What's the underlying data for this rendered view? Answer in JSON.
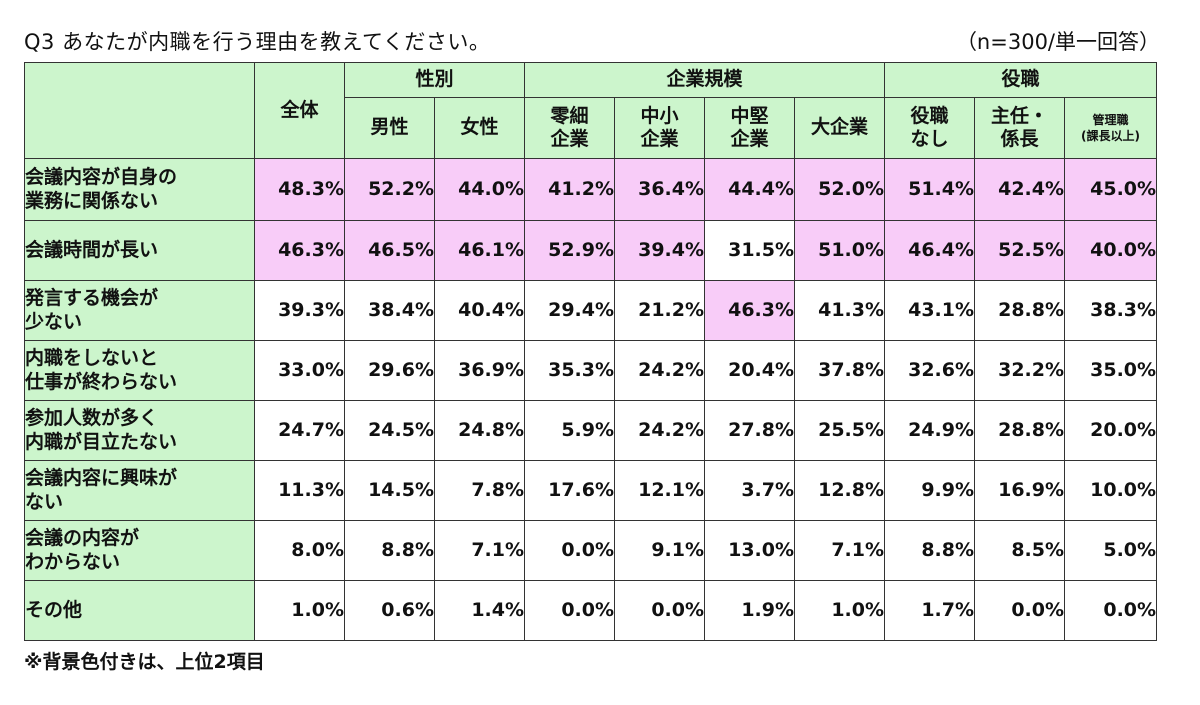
{
  "title": "Q3 あなたが内職を行う理由を教えてください。",
  "sample_note": "（n=300/単一回答）",
  "footnote": "※背景色付きは、上位2項目",
  "colors": {
    "header_bg": "#ccf5cc",
    "highlight_bg": "#f8ccf8"
  },
  "chart_data": {
    "type": "table",
    "title": "Q3 あなたが内職を行う理由を教えてください。",
    "total_label": "全体",
    "groups": [
      {
        "label": "性別",
        "columns": [
          "男性",
          "女性"
        ]
      },
      {
        "label": "企業規模",
        "columns": [
          "零細\n企業",
          "中小\n企業",
          "中堅\n企業",
          "大企業"
        ]
      },
      {
        "label": "役職",
        "columns": [
          "役職\nなし",
          "主任・\n係長",
          "管理職\n(課長以上)"
        ]
      }
    ],
    "rows": [
      {
        "label": "会議内容が自身の\n業務に関係ない",
        "values": [
          "48.3%",
          "52.2%",
          "44.0%",
          "41.2%",
          "36.4%",
          "44.4%",
          "52.0%",
          "51.4%",
          "42.4%",
          "45.0%"
        ],
        "highlight": [
          true,
          true,
          true,
          true,
          true,
          true,
          true,
          true,
          true,
          true
        ]
      },
      {
        "label": "会議時間が長い",
        "values": [
          "46.3%",
          "46.5%",
          "46.1%",
          "52.9%",
          "39.4%",
          "31.5%",
          "51.0%",
          "46.4%",
          "52.5%",
          "40.0%"
        ],
        "highlight": [
          true,
          true,
          true,
          true,
          true,
          false,
          true,
          true,
          true,
          true
        ]
      },
      {
        "label": "発言する機会が\n少ない",
        "values": [
          "39.3%",
          "38.4%",
          "40.4%",
          "29.4%",
          "21.2%",
          "46.3%",
          "41.3%",
          "43.1%",
          "28.8%",
          "38.3%"
        ],
        "highlight": [
          false,
          false,
          false,
          false,
          false,
          true,
          false,
          false,
          false,
          false
        ]
      },
      {
        "label": "内職をしないと\n仕事が終わらない",
        "values": [
          "33.0%",
          "29.6%",
          "36.9%",
          "35.3%",
          "24.2%",
          "20.4%",
          "37.8%",
          "32.6%",
          "32.2%",
          "35.0%"
        ],
        "highlight": [
          false,
          false,
          false,
          false,
          false,
          false,
          false,
          false,
          false,
          false
        ]
      },
      {
        "label": "参加人数が多く\n内職が目立たない",
        "values": [
          "24.7%",
          "24.5%",
          "24.8%",
          "5.9%",
          "24.2%",
          "27.8%",
          "25.5%",
          "24.9%",
          "28.8%",
          "20.0%"
        ],
        "highlight": [
          false,
          false,
          false,
          false,
          false,
          false,
          false,
          false,
          false,
          false
        ]
      },
      {
        "label": "会議内容に興味が\nない",
        "values": [
          "11.3%",
          "14.5%",
          "7.8%",
          "17.6%",
          "12.1%",
          "3.7%",
          "12.8%",
          "9.9%",
          "16.9%",
          "10.0%"
        ],
        "highlight": [
          false,
          false,
          false,
          false,
          false,
          false,
          false,
          false,
          false,
          false
        ]
      },
      {
        "label": "会議の内容が\nわからない",
        "values": [
          "8.0%",
          "8.8%",
          "7.1%",
          "0.0%",
          "9.1%",
          "13.0%",
          "7.1%",
          "8.8%",
          "8.5%",
          "5.0%"
        ],
        "highlight": [
          false,
          false,
          false,
          false,
          false,
          false,
          false,
          false,
          false,
          false
        ]
      },
      {
        "label": "その他",
        "values": [
          "1.0%",
          "0.6%",
          "1.4%",
          "0.0%",
          "0.0%",
          "1.9%",
          "1.0%",
          "1.7%",
          "0.0%",
          "0.0%"
        ],
        "highlight": [
          false,
          false,
          false,
          false,
          false,
          false,
          false,
          false,
          false,
          false
        ]
      }
    ]
  }
}
